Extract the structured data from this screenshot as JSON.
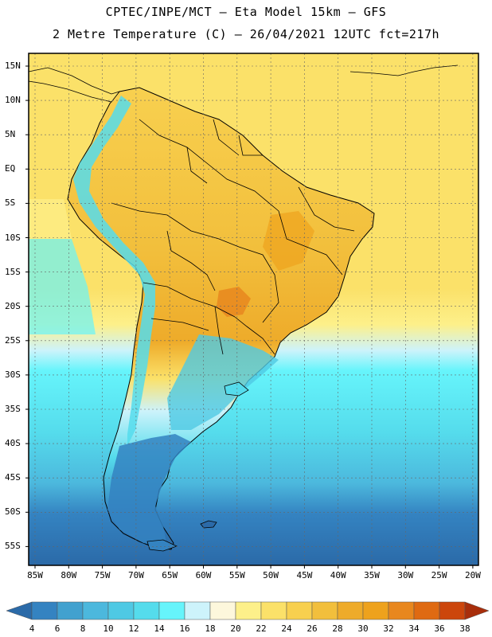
{
  "title_line1": "CPTEC/INPE/MCT –  Eta Model 15km – GFS",
  "title_line2": "2 Metre Temperature (C) – 26/04/2021 12UTC fct=217h",
  "lat_labels": [
    "15N",
    "10N",
    "5N",
    "EQ",
    "5S",
    "10S",
    "15S",
    "20S",
    "25S",
    "30S",
    "35S",
    "40S",
    "45S",
    "50S",
    "55S"
  ],
  "lon_labels": [
    "85W",
    "80W",
    "75W",
    "70W",
    "65W",
    "60W",
    "55W",
    "50W",
    "45W",
    "40W",
    "35W",
    "30W",
    "25W",
    "20W"
  ],
  "colorbar": {
    "labels": [
      "4",
      "6",
      "8",
      "10",
      "12",
      "14",
      "16",
      "18",
      "20",
      "22",
      "24",
      "26",
      "28",
      "30",
      "32",
      "34",
      "36",
      "38"
    ],
    "colors": [
      "#2b6aa8",
      "#3483c1",
      "#41a1cf",
      "#4cb8dd",
      "#4fc9e4",
      "#55dcec",
      "#66f4fb",
      "#cdf3fb",
      "#fdf7dc",
      "#fdf08a",
      "#fbe169",
      "#f8d04f",
      "#f2bf3c",
      "#eeab2a",
      "#eea21d",
      "#e8871e",
      "#df6a12",
      "#cc460c",
      "#a82e0b"
    ]
  }
}
